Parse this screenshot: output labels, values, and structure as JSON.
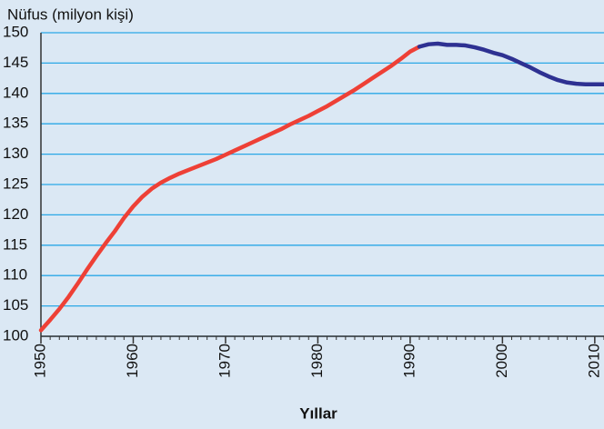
{
  "chart_data": {
    "type": "line",
    "title": "Nüfus (milyon kişi)",
    "x_label": "Yıllar",
    "series": [
      {
        "color": "#ee4036",
        "x": [
          1950,
          1951,
          1952,
          1953,
          1954,
          1955,
          1956,
          1957,
          1958,
          1959,
          1960,
          1961,
          1962,
          1963,
          1964,
          1965,
          1966,
          1967,
          1968,
          1969,
          1970,
          1971,
          1972,
          1973,
          1974,
          1975,
          1976,
          1977,
          1978,
          1979,
          1980,
          1981,
          1982,
          1983,
          1984,
          1985,
          1986,
          1987,
          1988,
          1989,
          1990,
          1991
        ],
        "values": [
          101,
          102.7,
          104.5,
          106.5,
          108.7,
          111,
          113.2,
          115.3,
          117.3,
          119.5,
          121.4,
          123,
          124.3,
          125.3,
          126.1,
          126.8,
          127.4,
          128,
          128.6,
          129.2,
          129.9,
          130.6,
          131.3,
          132,
          132.7,
          133.4,
          134.1,
          134.9,
          135.6,
          136.3,
          137.1,
          137.9,
          138.8,
          139.7,
          140.6,
          141.6,
          142.6,
          143.6,
          144.6,
          145.7,
          146.9,
          147.7
        ]
      },
      {
        "color": "#2e3192",
        "x": [
          1991,
          1992,
          1993,
          1994,
          1995,
          1996,
          1997,
          1998,
          1999,
          2000,
          2001,
          2002,
          2003,
          2004,
          2005,
          2006,
          2007,
          2008,
          2009,
          2010,
          2011
        ],
        "values": [
          147.7,
          148.1,
          148.2,
          148,
          148,
          147.9,
          147.6,
          147.2,
          146.7,
          146.3,
          145.7,
          145,
          144.3,
          143.5,
          142.8,
          142.2,
          141.8,
          141.6,
          141.5,
          141.5,
          141.5
        ]
      }
    ],
    "xlim": [
      1950,
      2011
    ],
    "xticks": [
      1950,
      1960,
      1970,
      1980,
      1990,
      2000,
      2010
    ],
    "ylim": [
      100,
      150
    ],
    "yticks": [
      100,
      105,
      110,
      115,
      120,
      125,
      130,
      135,
      140,
      145,
      150
    ],
    "grid": true,
    "grid_color": "#2aa7e6",
    "background": "#dbe8f4"
  }
}
